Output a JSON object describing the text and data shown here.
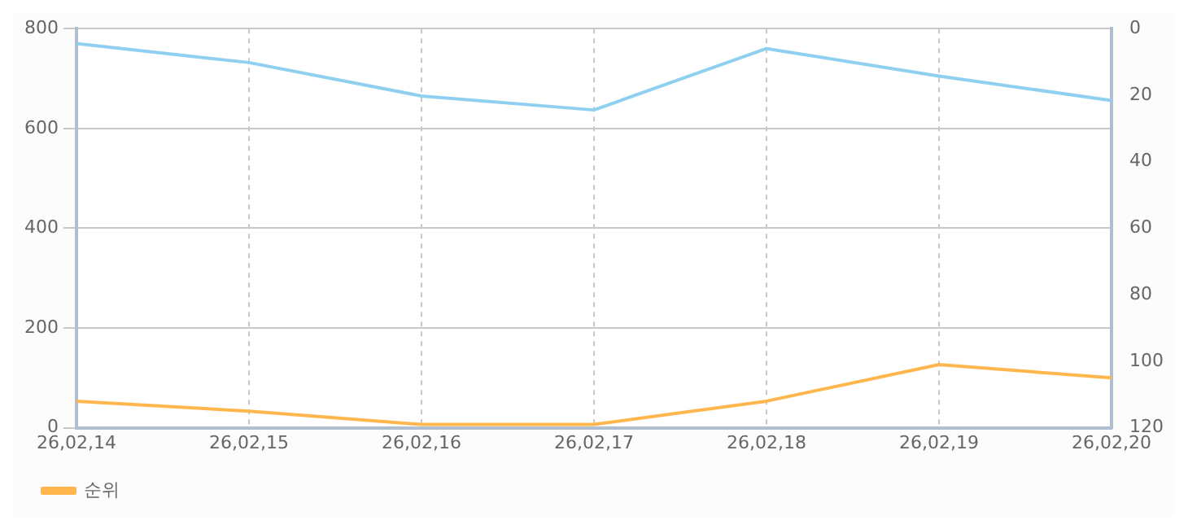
{
  "chart_data": {
    "type": "line",
    "categories": [
      "26,02,14",
      "26,02,15",
      "26,02,16",
      "26,02,17",
      "26,02,18",
      "26,02,19",
      "26,02,20"
    ],
    "series": [
      {
        "color": "#8fd0f0",
        "values": [
          770,
          732,
          665,
          637,
          760,
          705,
          656
        ]
      },
      {
        "name": "순위",
        "color": "#ffb74d",
        "axis": "y2",
        "values": [
          112,
          115,
          119,
          119,
          112,
          101,
          105
        ]
      }
    ],
    "ylim": [
      0,
      800
    ],
    "yticks": [
      0,
      200,
      400,
      600,
      800
    ],
    "y2lim": [
      120,
      0
    ],
    "y2ticks": [
      0,
      20,
      40,
      60,
      80,
      100,
      120
    ],
    "grid": true,
    "legend": "bottom left",
    "marker": "none",
    "line_style": "solid"
  }
}
